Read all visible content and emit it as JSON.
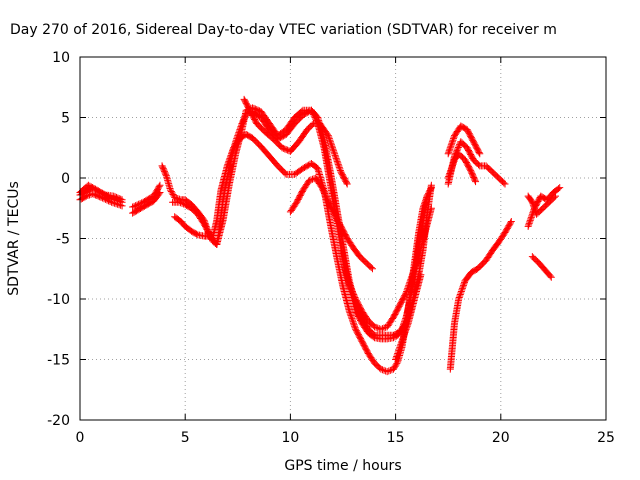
{
  "chart_data": {
    "type": "scatter",
    "title": "Day 270 of 2016, Sidereal Day-to-day VTEC variation (SDTVAR) for receiver m",
    "xlabel": "GPS time / hours",
    "ylabel": "SDTVAR / TECUs",
    "xlim": [
      0,
      25
    ],
    "ylim": [
      -20,
      10
    ],
    "x_ticks": [
      "0",
      "5",
      "10",
      "15",
      "20",
      "25"
    ],
    "y_ticks": [
      "10",
      "5",
      "0",
      "-5",
      "-10",
      "-15",
      "-20"
    ],
    "grid": true,
    "marker": "plus",
    "color": "#ff0000",
    "series": [
      {
        "x": [
          0.0,
          0.3,
          0.6,
          1.0,
          1.5,
          2.0
        ],
        "y": [
          -1.4,
          -1.1,
          -0.8,
          -1.2,
          -1.7,
          -2.0
        ]
      },
      {
        "x": [
          0.0,
          0.3,
          0.6,
          1.0,
          1.5,
          2.0
        ],
        "y": [
          -1.8,
          -1.5,
          -1.3,
          -1.6,
          -2.0,
          -2.3
        ]
      },
      {
        "x": [
          0.0,
          0.4,
          0.8,
          1.2,
          1.6,
          2.0
        ],
        "y": [
          -1.2,
          -0.6,
          -1.0,
          -1.4,
          -1.5,
          -1.8
        ]
      },
      {
        "x": [
          2.5,
          3.0,
          3.5,
          3.8
        ],
        "y": [
          -2.4,
          -2.0,
          -1.5,
          -0.6
        ]
      },
      {
        "x": [
          2.5,
          3.0,
          3.5,
          3.8
        ],
        "y": [
          -2.9,
          -2.4,
          -1.9,
          -1.2
        ]
      },
      {
        "x": [
          3.9,
          4.1,
          4.3,
          4.5,
          4.8,
          5.0,
          5.3,
          5.6,
          5.9,
          6.1,
          6.3,
          6.5,
          6.6,
          6.8,
          7.1,
          7.4,
          7.7,
          7.9,
          8.2,
          8.6,
          9.0,
          9.4,
          9.8,
          10.2,
          10.6,
          11.0,
          11.3,
          11.6,
          11.9,
          12.2,
          12.5,
          12.8,
          13.1,
          13.4,
          13.7,
          14.0,
          14.3,
          14.6,
          14.9,
          15.1,
          15.3,
          15.5,
          15.7,
          15.9,
          16.1,
          16.3,
          16.5,
          16.7
        ],
        "y": [
          1.0,
          0.2,
          -1.0,
          -1.6,
          -1.8,
          -1.8,
          -2.2,
          -2.8,
          -3.5,
          -4.5,
          -5.2,
          -5.5,
          -4.5,
          -1.8,
          1.0,
          3.0,
          4.5,
          5.3,
          5.5,
          5.0,
          4.0,
          3.2,
          3.6,
          4.5,
          5.2,
          5.6,
          5.0,
          3.2,
          0.5,
          -2.5,
          -5.5,
          -8.5,
          -10.5,
          -11.5,
          -12.5,
          -13.0,
          -13.0,
          -13.0,
          -13.0,
          -12.8,
          -12.5,
          -12.0,
          -11.0,
          -9.5,
          -8.0,
          -6.0,
          -3.0,
          -0.6
        ]
      },
      {
        "x": [
          4.4,
          4.7,
          5.0,
          5.3,
          5.6,
          5.9,
          6.2,
          6.5,
          6.8,
          7.1,
          7.4,
          7.7,
          7.9,
          8.2,
          8.6,
          9.0,
          9.4,
          9.8,
          10.2,
          10.6,
          11.0,
          11.3,
          11.6,
          11.9,
          12.2,
          12.5,
          12.8,
          13.1,
          13.4,
          13.7,
          14.0,
          14.3,
          14.6,
          14.9,
          15.1,
          15.3,
          15.5,
          15.7,
          15.9,
          16.1,
          16.3,
          16.5,
          16.7
        ],
        "y": [
          -2.0,
          -2.0,
          -2.2,
          -2.5,
          -3.0,
          -3.8,
          -4.8,
          -5.5,
          -3.5,
          -0.5,
          2.0,
          4.0,
          5.6,
          5.8,
          5.5,
          4.5,
          3.5,
          4.0,
          5.0,
          5.6,
          5.6,
          4.5,
          2.5,
          -0.5,
          -3.5,
          -6.5,
          -9.0,
          -11.0,
          -12.0,
          -12.8,
          -13.2,
          -13.3,
          -13.3,
          -13.2,
          -13.0,
          -12.5,
          -11.5,
          -10.0,
          -8.0,
          -5.5,
          -3.5,
          -1.5,
          -0.8
        ]
      },
      {
        "x": [
          4.5,
          4.8,
          5.0,
          5.3,
          5.6,
          5.9,
          6.1,
          6.3,
          6.5,
          6.7,
          7.0,
          7.3,
          7.6,
          7.9,
          8.2,
          8.6,
          9.0,
          9.4,
          9.8,
          10.2,
          10.6,
          11.0,
          11.3,
          11.6,
          11.9,
          12.2,
          12.5,
          12.8,
          13.1,
          13.4,
          13.7,
          14.0,
          14.3,
          14.6,
          14.9,
          15.1,
          15.3,
          15.5,
          15.7,
          15.9,
          16.1,
          16.3,
          16.5
        ],
        "y": [
          -3.2,
          -3.6,
          -4.0,
          -4.4,
          -4.7,
          -4.8,
          -4.8,
          -5.0,
          -3.5,
          -1.0,
          1.0,
          2.5,
          3.3,
          3.6,
          3.3,
          2.6,
          1.8,
          1.0,
          0.3,
          0.3,
          0.8,
          1.2,
          0.8,
          -1.0,
          -3.8,
          -6.5,
          -9.0,
          -11.0,
          -12.5,
          -13.5,
          -14.5,
          -15.3,
          -15.8,
          -16.0,
          -15.8,
          -15.2,
          -14.0,
          -12.0,
          -9.5,
          -7.0,
          -4.5,
          -2.5,
          -1.5
        ]
      },
      {
        "x": [
          7.8,
          8.1,
          8.4,
          8.8,
          9.2,
          9.6,
          10.0,
          10.4,
          10.8,
          11.1,
          11.4,
          11.8,
          12.1,
          12.4,
          12.7
        ],
        "y": [
          6.5,
          5.5,
          4.5,
          3.8,
          3.2,
          2.5,
          2.2,
          3.0,
          4.0,
          4.5,
          4.5,
          3.5,
          2.0,
          0.5,
          -0.5
        ]
      },
      {
        "x": [
          10.0,
          10.3,
          10.6,
          10.9,
          11.2,
          11.5,
          11.8,
          12.1,
          12.4,
          12.7,
          13.0,
          13.3,
          13.6,
          13.9
        ],
        "y": [
          -2.8,
          -2.0,
          -1.0,
          -0.2,
          0.0,
          -0.8,
          -2.0,
          -3.0,
          -4.0,
          -5.0,
          -5.8,
          -6.5,
          -7.0,
          -7.5
        ]
      },
      {
        "x": [
          17.5,
          17.8,
          18.1,
          18.4,
          18.7,
          19.0
        ],
        "y": [
          2.0,
          3.5,
          4.3,
          4.0,
          3.0,
          2.0
        ]
      },
      {
        "x": [
          17.5,
          17.8,
          18.1,
          18.4,
          18.7,
          19.0,
          19.3,
          19.6,
          19.9,
          20.2
        ],
        "y": [
          -0.5,
          1.8,
          3.0,
          2.5,
          1.5,
          1.0,
          1.0,
          0.5,
          0.0,
          -0.5
        ]
      },
      {
        "x": [
          17.5,
          17.8,
          18.0,
          18.3,
          18.6,
          18.8
        ],
        "y": [
          0.0,
          1.5,
          2.0,
          1.5,
          0.5,
          -0.3
        ]
      },
      {
        "x": [
          17.6,
          17.8,
          18.0,
          18.3,
          18.6,
          18.9,
          19.3,
          19.6,
          19.9,
          20.2,
          20.5
        ],
        "y": [
          -15.8,
          -12.0,
          -10.0,
          -8.5,
          -7.8,
          -7.5,
          -6.8,
          -6.0,
          -5.3,
          -4.5,
          -3.6
        ]
      },
      {
        "x": [
          21.3,
          21.6,
          21.9,
          22.2,
          22.5,
          22.8
        ],
        "y": [
          -4.0,
          -2.5,
          -1.5,
          -1.8,
          -1.2,
          -0.8
        ]
      },
      {
        "x": [
          21.3,
          21.5,
          21.7,
          22.0,
          22.3,
          22.6
        ],
        "y": [
          -1.5,
          -2.0,
          -3.0,
          -2.5,
          -2.0,
          -1.5
        ]
      },
      {
        "x": [
          21.5,
          21.8,
          22.1,
          22.4
        ],
        "y": [
          -6.5,
          -7.0,
          -7.6,
          -8.2
        ]
      },
      {
        "x": [
          12.4,
          12.6,
          12.8,
          13.1,
          13.4,
          13.7,
          14.0,
          14.3,
          14.6,
          14.9,
          15.2,
          15.5,
          15.8,
          16.1,
          16.4,
          16.7
        ],
        "y": [
          -6.0,
          -7.5,
          -8.8,
          -10.0,
          -11.0,
          -11.8,
          -12.3,
          -12.5,
          -12.3,
          -11.5,
          -10.5,
          -9.5,
          -8.0,
          -6.5,
          -4.5,
          -2.5
        ]
      },
      {
        "x": [
          15.0,
          15.3,
          15.6,
          15.9,
          16.2
        ],
        "y": [
          -15.0,
          -13.5,
          -12.0,
          -10.0,
          -8.0
        ]
      }
    ]
  }
}
